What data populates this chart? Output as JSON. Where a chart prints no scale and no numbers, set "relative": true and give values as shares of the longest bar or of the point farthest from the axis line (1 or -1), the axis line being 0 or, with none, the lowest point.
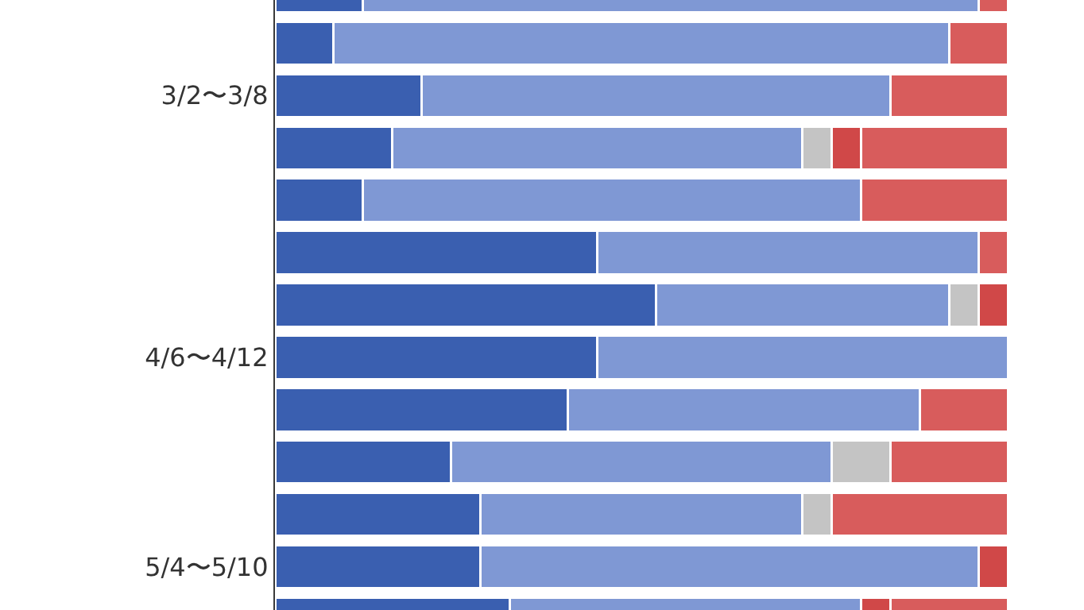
{
  "chart_data": {
    "type": "bar",
    "orientation": "horizontal",
    "stacked": true,
    "relative": true,
    "categories": [
      null,
      null,
      "3/2〜3/8",
      null,
      null,
      null,
      null,
      "4/6〜4/12",
      null,
      null,
      null,
      "5/4〜5/10",
      null
    ],
    "series": [
      {
        "color": "#3a5fb0",
        "values": [
          0.12,
          0.08,
          0.2,
          0.16,
          0.12,
          0.44,
          0.52,
          0.44,
          0.4,
          0.24,
          0.28,
          0.28,
          0.32
        ]
      },
      {
        "color": "#7f98d4",
        "values": [
          0.84,
          0.84,
          0.64,
          0.56,
          0.68,
          0.52,
          0.4,
          0.56,
          0.48,
          0.52,
          0.44,
          0.68,
          0.48
        ]
      },
      {
        "color": "#c4c4c4",
        "values": [
          null,
          null,
          null,
          0.04,
          null,
          null,
          0.04,
          null,
          null,
          0.08,
          0.04,
          null,
          null
        ]
      },
      {
        "color": "#d04848",
        "values": [
          null,
          null,
          null,
          0.04,
          null,
          null,
          0.04,
          null,
          null,
          null,
          null,
          0.04,
          0.04
        ]
      },
      {
        "color": "#d85c5c",
        "values": [
          0.04,
          0.08,
          0.16,
          0.2,
          0.2,
          0.04,
          null,
          null,
          0.12,
          0.16,
          0.24,
          null,
          0.16
        ]
      }
    ]
  }
}
